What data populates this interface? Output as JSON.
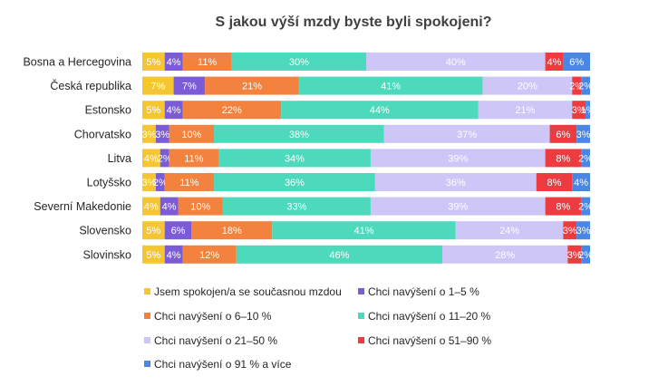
{
  "chart_data": {
    "type": "bar",
    "orientation": "horizontal",
    "stacked": "percent",
    "title": "S jakou výší mzdy byste byli spokojeni?",
    "categories": [
      "Bosna a Hercegovina",
      "Česká republika",
      "Estonsko",
      "Chorvatsko",
      "Litva",
      "Lotyšsko",
      "Severní Makedonie",
      "Slovensko",
      "Slovinsko"
    ],
    "series": [
      {
        "name": "Jsem spokojen/a se současnou mzdou",
        "color": "#F6C632",
        "values": [
          5,
          7,
          5,
          3,
          4,
          3,
          4,
          5,
          5
        ],
        "labels": [
          "5%",
          "7%",
          "5%",
          "3%",
          "4%",
          "3%",
          "4%",
          "5%",
          "5%"
        ]
      },
      {
        "name": "Chci navýšení o 1–5 %",
        "color": "#7B5CD6",
        "values": [
          4,
          7,
          4,
          3,
          2,
          2,
          4,
          6,
          4
        ],
        "labels": [
          "4%",
          "7%",
          "4%",
          "3%",
          "2%",
          "2%",
          "4%",
          "6%",
          "4%"
        ]
      },
      {
        "name": "Chci navýšení o 6–10 %",
        "color": "#F4823F",
        "values": [
          11,
          21,
          22,
          10,
          11,
          11,
          10,
          18,
          12
        ],
        "labels": [
          "11%",
          "21%",
          "22%",
          "10%",
          "11%",
          "11%",
          "10%",
          "18%",
          "12%"
        ]
      },
      {
        "name": "Chci navýšení o 11–20 %",
        "color": "#4DD9BC",
        "values": [
          30,
          41,
          44,
          38,
          34,
          36,
          33,
          41,
          46
        ],
        "labels": [
          "30%",
          "41%",
          "44%",
          "38%",
          "34%",
          "36%",
          "33%",
          "41%",
          "46%"
        ]
      },
      {
        "name": "Chci navýšení o 21–50 %",
        "color": "#CDC6F6",
        "values": [
          40,
          20,
          21,
          37,
          39,
          36,
          39,
          24,
          28
        ],
        "labels": [
          "40%",
          "20%",
          "21%",
          "37%",
          "39%",
          "36%",
          "39%",
          "24%",
          "28%"
        ]
      },
      {
        "name": "Chci navýšení o 51–90 %",
        "color": "#EE3B3F",
        "values": [
          4,
          2,
          3,
          6,
          8,
          8,
          8,
          3,
          3
        ],
        "labels": [
          "4%",
          "2%",
          "3%",
          "6%",
          "8%",
          "8%",
          "8%",
          "3%",
          "3%"
        ]
      },
      {
        "name": "Chci navýšení o 91 % a více",
        "color": "#4A86E4",
        "values": [
          6,
          2,
          1,
          3,
          2,
          4,
          2,
          3,
          2
        ],
        "labels": [
          "6%",
          "2%",
          "1%",
          "3%",
          "2%",
          "4%",
          "2%",
          "3%",
          "2%"
        ]
      }
    ],
    "xlim": [
      0,
      100
    ],
    "grid": false,
    "legend_position": "bottom"
  }
}
